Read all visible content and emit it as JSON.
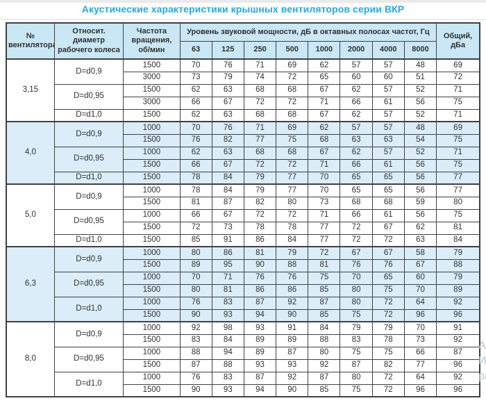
{
  "title": "Акустические характеристики крышных вентиляторов серии ВКР",
  "colors": {
    "title_accent": "#2aa8dc",
    "header_bg": "#c9e7f5",
    "shaded_group_bg": "#daedf8",
    "border": "#404040"
  },
  "table": {
    "headers": {
      "fan_no": "№ вентилятора",
      "diameter": "Относит. диаметр рабочего колеса",
      "speed": "Частота вращения, об/мин",
      "spl_group": "Уровень звуковой мощности, дБ в октавных полосах частот, Гц",
      "freqs": [
        "63",
        "125",
        "250",
        "500",
        "1000",
        "2000",
        "4000",
        "8000"
      ],
      "total": "Общий, дБа"
    },
    "groups": [
      {
        "fan": "3,15",
        "shaded": false,
        "diameters": [
          {
            "label": "D=d0,9",
            "rows": [
              {
                "speed": "1500",
                "values": [
                  70,
                  76,
                  71,
                  69,
                  62,
                  57,
                  57,
                  48
                ],
                "total": 69
              },
              {
                "speed": "3000",
                "values": [
                  73,
                  79,
                  74,
                  72,
                  65,
                  60,
                  60,
                  51
                ],
                "total": 72
              }
            ]
          },
          {
            "label": "D=d0,95",
            "rows": [
              {
                "speed": "1500",
                "values": [
                  62,
                  63,
                  68,
                  68,
                  67,
                  62,
                  57,
                  52
                ],
                "total": 71
              },
              {
                "speed": "3000",
                "values": [
                  66,
                  67,
                  72,
                  72,
                  71,
                  66,
                  61,
                  56
                ],
                "total": 75
              }
            ]
          },
          {
            "label": "D=d1,0",
            "rows": [
              {
                "speed": "1500",
                "values": [
                  62,
                  63,
                  68,
                  68,
                  67,
                  62,
                  57,
                  52
                ],
                "total": 71
              }
            ]
          }
        ]
      },
      {
        "fan": "4,0",
        "shaded": true,
        "diameters": [
          {
            "label": "D=d0,9",
            "rows": [
              {
                "speed": "1000",
                "values": [
                  70,
                  76,
                  71,
                  69,
                  62,
                  57,
                  57,
                  48
                ],
                "total": 69
              },
              {
                "speed": "1500",
                "values": [
                  76,
                  82,
                  77,
                  75,
                  68,
                  63,
                  63,
                  54
                ],
                "total": 75
              }
            ]
          },
          {
            "label": "D=d0,95",
            "rows": [
              {
                "speed": "1000",
                "values": [
                  62,
                  63,
                  68,
                  68,
                  67,
                  62,
                  57,
                  52
                ],
                "total": 71
              },
              {
                "speed": "1500",
                "values": [
                  66,
                  67,
                  72,
                  72,
                  71,
                  66,
                  61,
                  56
                ],
                "total": 75
              }
            ]
          },
          {
            "label": "D=d1,0",
            "rows": [
              {
                "speed": "1500",
                "values": [
                  78,
                  84,
                  79,
                  77,
                  70,
                  65,
                  65,
                  56
                ],
                "total": 77
              }
            ]
          }
        ]
      },
      {
        "fan": "5,0",
        "shaded": false,
        "diameters": [
          {
            "label": "D=d0,9",
            "rows": [
              {
                "speed": "1000",
                "values": [
                  78,
                  84,
                  79,
                  77,
                  70,
                  65,
                  65,
                  56
                ],
                "total": 77
              },
              {
                "speed": "1500",
                "values": [
                  81,
                  87,
                  82,
                  80,
                  73,
                  68,
                  68,
                  59
                ],
                "total": 80
              }
            ]
          },
          {
            "label": "D=d0,95",
            "rows": [
              {
                "speed": "1000",
                "values": [
                  66,
                  67,
                  72,
                  72,
                  71,
                  66,
                  61,
                  56
                ],
                "total": 75
              },
              {
                "speed": "1500",
                "values": [
                  72,
                  73,
                  78,
                  78,
                  77,
                  72,
                  67,
                  62
                ],
                "total": 81
              }
            ]
          },
          {
            "label": "D=d1,0",
            "rows": [
              {
                "speed": "1500",
                "values": [
                  85,
                  91,
                  86,
                  84,
                  77,
                  72,
                  72,
                  63
                ],
                "total": 84
              }
            ]
          }
        ]
      },
      {
        "fan": "6,3",
        "shaded": true,
        "diameters": [
          {
            "label": "D=d0,9",
            "rows": [
              {
                "speed": "1000",
                "values": [
                  80,
                  86,
                  81,
                  79,
                  72,
                  67,
                  67,
                  58
                ],
                "total": 79
              },
              {
                "speed": "1500",
                "values": [
                  89,
                  95,
                  90,
                  88,
                  81,
                  76,
                  76,
                  67
                ],
                "total": 88
              }
            ]
          },
          {
            "label": "D=d0,95",
            "rows": [
              {
                "speed": "1000",
                "values": [
                  70,
                  71,
                  76,
                  76,
                  75,
                  70,
                  65,
                  60
                ],
                "total": 79
              },
              {
                "speed": "1500",
                "values": [
                  80,
                  81,
                  86,
                  86,
                  85,
                  80,
                  75,
                  70
                ],
                "total": 89
              }
            ]
          },
          {
            "label": "D=d1,0",
            "rows": [
              {
                "speed": "1000",
                "values": [
                  76,
                  83,
                  87,
                  92,
                  87,
                  80,
                  72,
                  64
                ],
                "total": 92
              },
              {
                "speed": "1500",
                "values": [
                  90,
                  93,
                  94,
                  90,
                  85,
                  75,
                  72,
                  96
                ],
                "total": 96
              }
            ]
          }
        ]
      },
      {
        "fan": "8,0",
        "shaded": false,
        "diameters": [
          {
            "label": "D=d0,9",
            "rows": [
              {
                "speed": "1000",
                "values": [
                  92,
                  98,
                  93,
                  91,
                  84,
                  79,
                  79,
                  70
                ],
                "total": 91
              },
              {
                "speed": "1500",
                "values": [
                  83,
                  84,
                  89,
                  89,
                  88,
                  83,
                  78,
                  73
                ],
                "total": 92
              }
            ]
          },
          {
            "label": "D=d0,95",
            "rows": [
              {
                "speed": "1000",
                "values": [
                  88,
                  94,
                  89,
                  87,
                  80,
                  75,
                  75,
                  66
                ],
                "total": 87
              },
              {
                "speed": "1500",
                "values": [
                  87,
                  88,
                  93,
                  93,
                  92,
                  87,
                  82,
                  77
                ],
                "total": 96
              }
            ]
          },
          {
            "label": "D=d1,0",
            "rows": [
              {
                "speed": "1000",
                "values": [
                  76,
                  83,
                  87,
                  92,
                  87,
                  80,
                  72,
                  64
                ],
                "total": 92
              },
              {
                "speed": "1500",
                "values": [
                  90,
                  93,
                  94,
                  90,
                  85,
                  75,
                  72,
                  96
                ],
                "total": 96
              }
            ]
          }
        ]
      }
    ]
  },
  "watermark_lines": [
    "Ак",
    "Ит",
    "ра"
  ]
}
